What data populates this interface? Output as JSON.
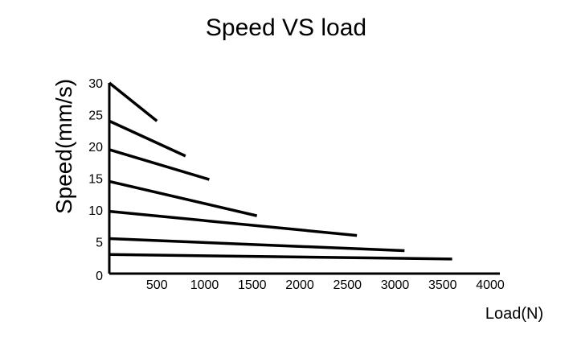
{
  "chart_data": {
    "type": "line",
    "title": "Speed VS load",
    "xlabel": "Load(N)",
    "ylabel": "Speed(mm/s)",
    "xlim": [
      0,
      4000
    ],
    "ylim": [
      0,
      30
    ],
    "x_ticks": [
      500,
      1000,
      1500,
      2000,
      2500,
      3000,
      3500,
      4000
    ],
    "y_ticks": [
      0,
      5,
      10,
      15,
      20,
      25,
      30
    ],
    "grid": false,
    "legend": "none",
    "series": [
      {
        "points": [
          [
            0,
            30
          ],
          [
            500,
            24
          ]
        ]
      },
      {
        "points": [
          [
            0,
            24
          ],
          [
            800,
            18.5
          ]
        ]
      },
      {
        "points": [
          [
            0,
            19.5
          ],
          [
            1050,
            14.8
          ]
        ]
      },
      {
        "points": [
          [
            0,
            14.5
          ],
          [
            1550,
            9.1
          ]
        ]
      },
      {
        "points": [
          [
            0,
            9.8
          ],
          [
            2600,
            6.0
          ]
        ]
      },
      {
        "points": [
          [
            0,
            5.5
          ],
          [
            3100,
            3.6
          ]
        ]
      },
      {
        "points": [
          [
            0,
            3.0
          ],
          [
            3600,
            2.3
          ]
        ]
      }
    ]
  }
}
